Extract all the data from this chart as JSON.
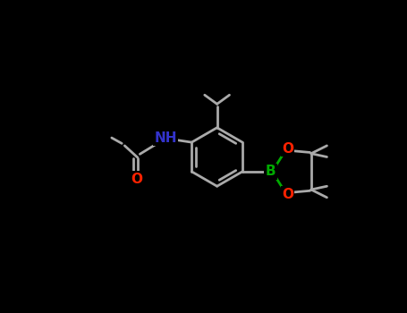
{
  "bg_color": "#000000",
  "bond_color": "#aaaaaa",
  "bond_lw": 2.0,
  "atom_N_color": "#3333cc",
  "atom_O_color": "#ff2200",
  "atom_B_color": "#00aa00",
  "font_size": 11,
  "figsize": [
    4.55,
    3.5
  ],
  "dpi": 100,
  "xlim": [
    -2.8,
    2.8
  ],
  "ylim": [
    -2.0,
    2.0
  ]
}
